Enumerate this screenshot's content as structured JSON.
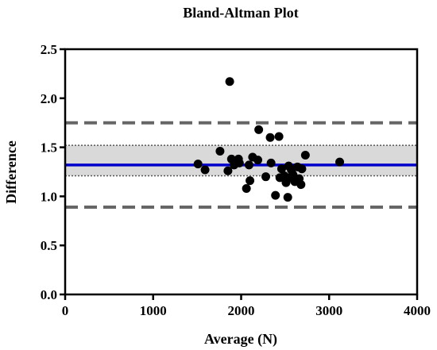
{
  "chart_data": {
    "type": "scatter",
    "title": "Bland-Altman Plot",
    "xlabel": "Average (N)",
    "ylabel": "Difference",
    "xlim": [
      0,
      4000
    ],
    "ylim": [
      0.0,
      2.5
    ],
    "xticks": [
      0,
      1000,
      2000,
      3000,
      4000
    ],
    "yticks": [
      0.0,
      0.5,
      1.0,
      1.5,
      2.0,
      2.5
    ],
    "x_tick_labels": [
      "0",
      "1000",
      "2000",
      "3000",
      "4000"
    ],
    "y_tick_labels": [
      "0.0",
      "0.5",
      "1.0",
      "1.5",
      "2.0",
      "2.5"
    ],
    "grid": false,
    "mean_difference": 1.32,
    "upper_limit_of_agreement": 1.75,
    "lower_limit_of_agreement": 0.89,
    "mean_ci": [
      1.21,
      1.52
    ],
    "points": [
      {
        "x": 1510,
        "y": 1.33
      },
      {
        "x": 1590,
        "y": 1.27
      },
      {
        "x": 1760,
        "y": 1.46
      },
      {
        "x": 1850,
        "y": 1.26
      },
      {
        "x": 1870,
        "y": 2.17
      },
      {
        "x": 1890,
        "y": 1.38
      },
      {
        "x": 1920,
        "y": 1.32
      },
      {
        "x": 1970,
        "y": 1.38
      },
      {
        "x": 1980,
        "y": 1.34
      },
      {
        "x": 2060,
        "y": 1.08
      },
      {
        "x": 2090,
        "y": 1.32
      },
      {
        "x": 2100,
        "y": 1.16
      },
      {
        "x": 2130,
        "y": 1.4
      },
      {
        "x": 2190,
        "y": 1.37
      },
      {
        "x": 2200,
        "y": 1.68
      },
      {
        "x": 2280,
        "y": 1.2
      },
      {
        "x": 2330,
        "y": 1.6
      },
      {
        "x": 2340,
        "y": 1.34
      },
      {
        "x": 2390,
        "y": 1.01
      },
      {
        "x": 2430,
        "y": 1.61
      },
      {
        "x": 2440,
        "y": 1.19
      },
      {
        "x": 2460,
        "y": 1.28
      },
      {
        "x": 2490,
        "y": 1.21
      },
      {
        "x": 2510,
        "y": 1.14
      },
      {
        "x": 2530,
        "y": 0.99
      },
      {
        "x": 2540,
        "y": 1.31
      },
      {
        "x": 2550,
        "y": 1.19
      },
      {
        "x": 2570,
        "y": 1.27
      },
      {
        "x": 2590,
        "y": 1.22
      },
      {
        "x": 2610,
        "y": 1.15
      },
      {
        "x": 2640,
        "y": 1.3
      },
      {
        "x": 2660,
        "y": 1.18
      },
      {
        "x": 2680,
        "y": 1.12
      },
      {
        "x": 2690,
        "y": 1.28
      },
      {
        "x": 2730,
        "y": 1.42
      },
      {
        "x": 3120,
        "y": 1.35
      }
    ]
  },
  "colors": {
    "mean_line": "#0000cc",
    "limit_lines": "#666666",
    "ci_band": "#d9d9d9",
    "points": "#000000",
    "axes": "#000000"
  }
}
